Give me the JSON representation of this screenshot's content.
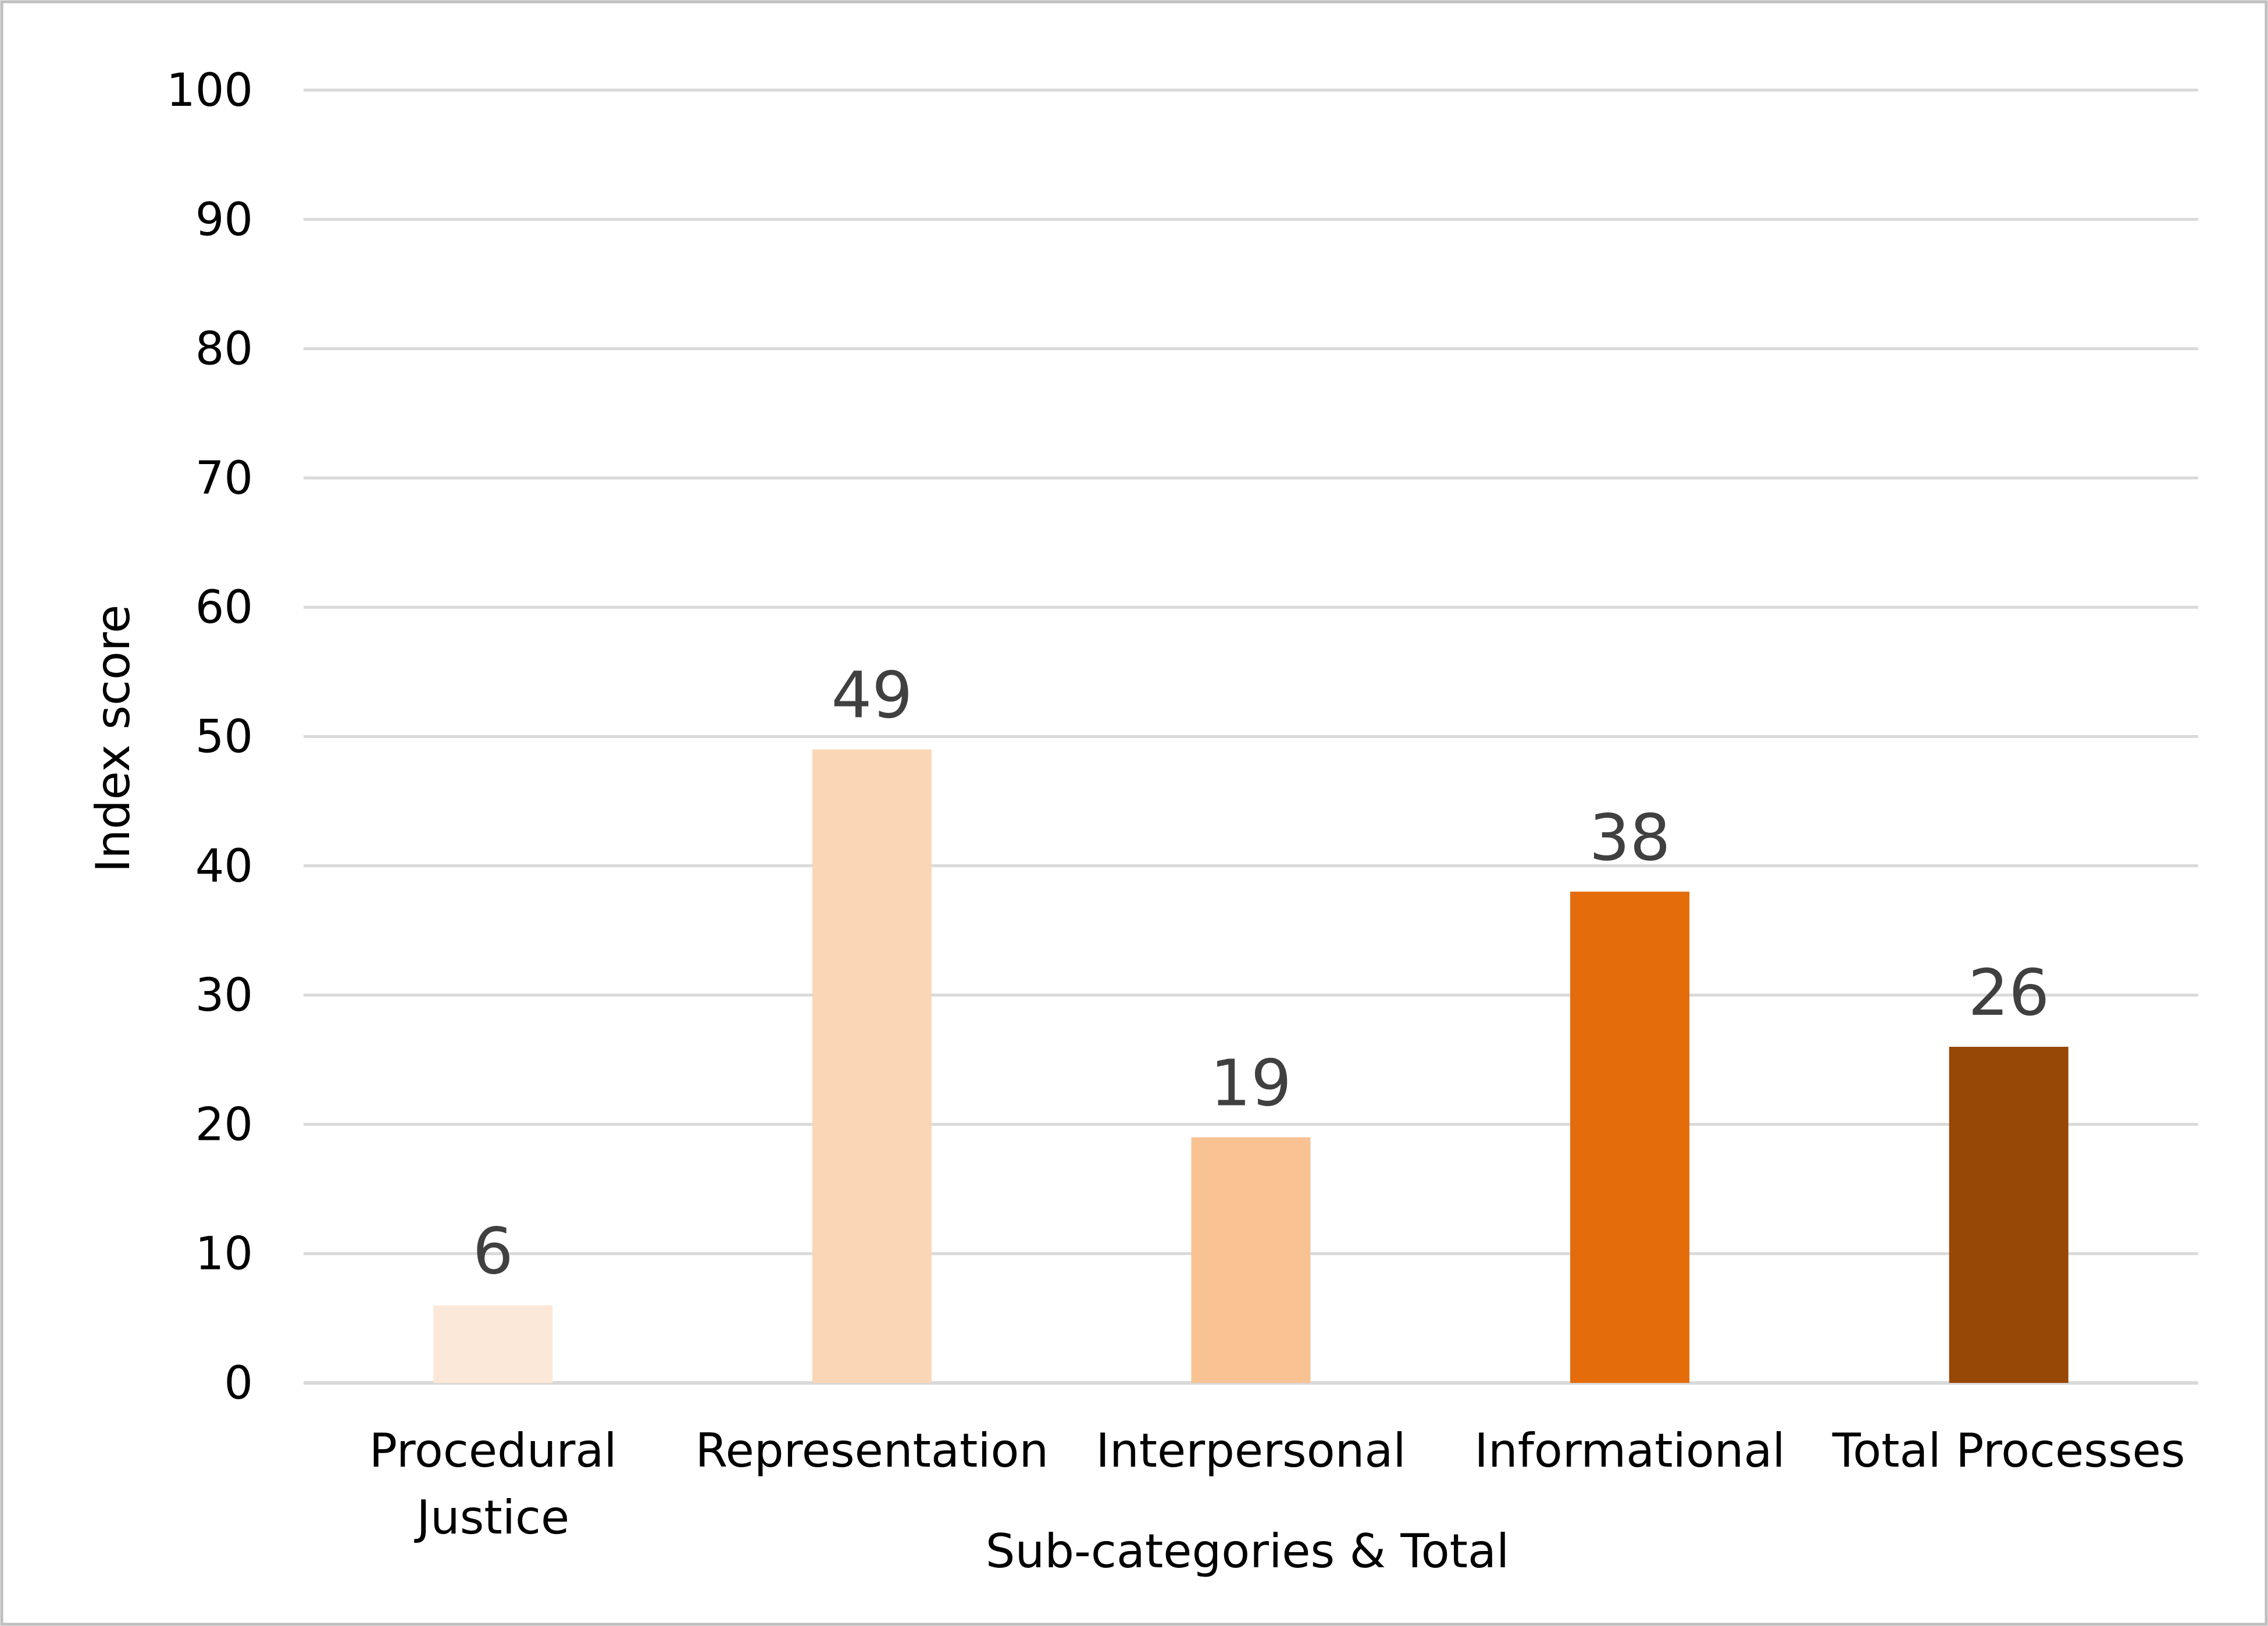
{
  "chart_data": {
    "type": "bar",
    "title": "",
    "xlabel": "Sub-categories & Total",
    "ylabel": "Index score",
    "ylim": [
      0,
      100
    ],
    "yticks": [
      0,
      10,
      20,
      30,
      40,
      50,
      60,
      70,
      80,
      90,
      100
    ],
    "grid": true,
    "legend": "none",
    "categories": [
      [
        "Procedural",
        "Justice"
      ],
      [
        "Representation"
      ],
      [
        "Interpersonal"
      ],
      [
        "Informational"
      ],
      [
        "Total Processes"
      ]
    ],
    "values": [
      6,
      49,
      19,
      38,
      26
    ],
    "data_labels": [
      "6",
      "49",
      "19",
      "38",
      "26"
    ],
    "colors": [
      "#FCE8D9",
      "#FBD6B6",
      "#F9C293",
      "#E46C0A",
      "#974706"
    ],
    "gridline_color": "#D9D9D9",
    "border_color": "#BFBFBF"
  }
}
